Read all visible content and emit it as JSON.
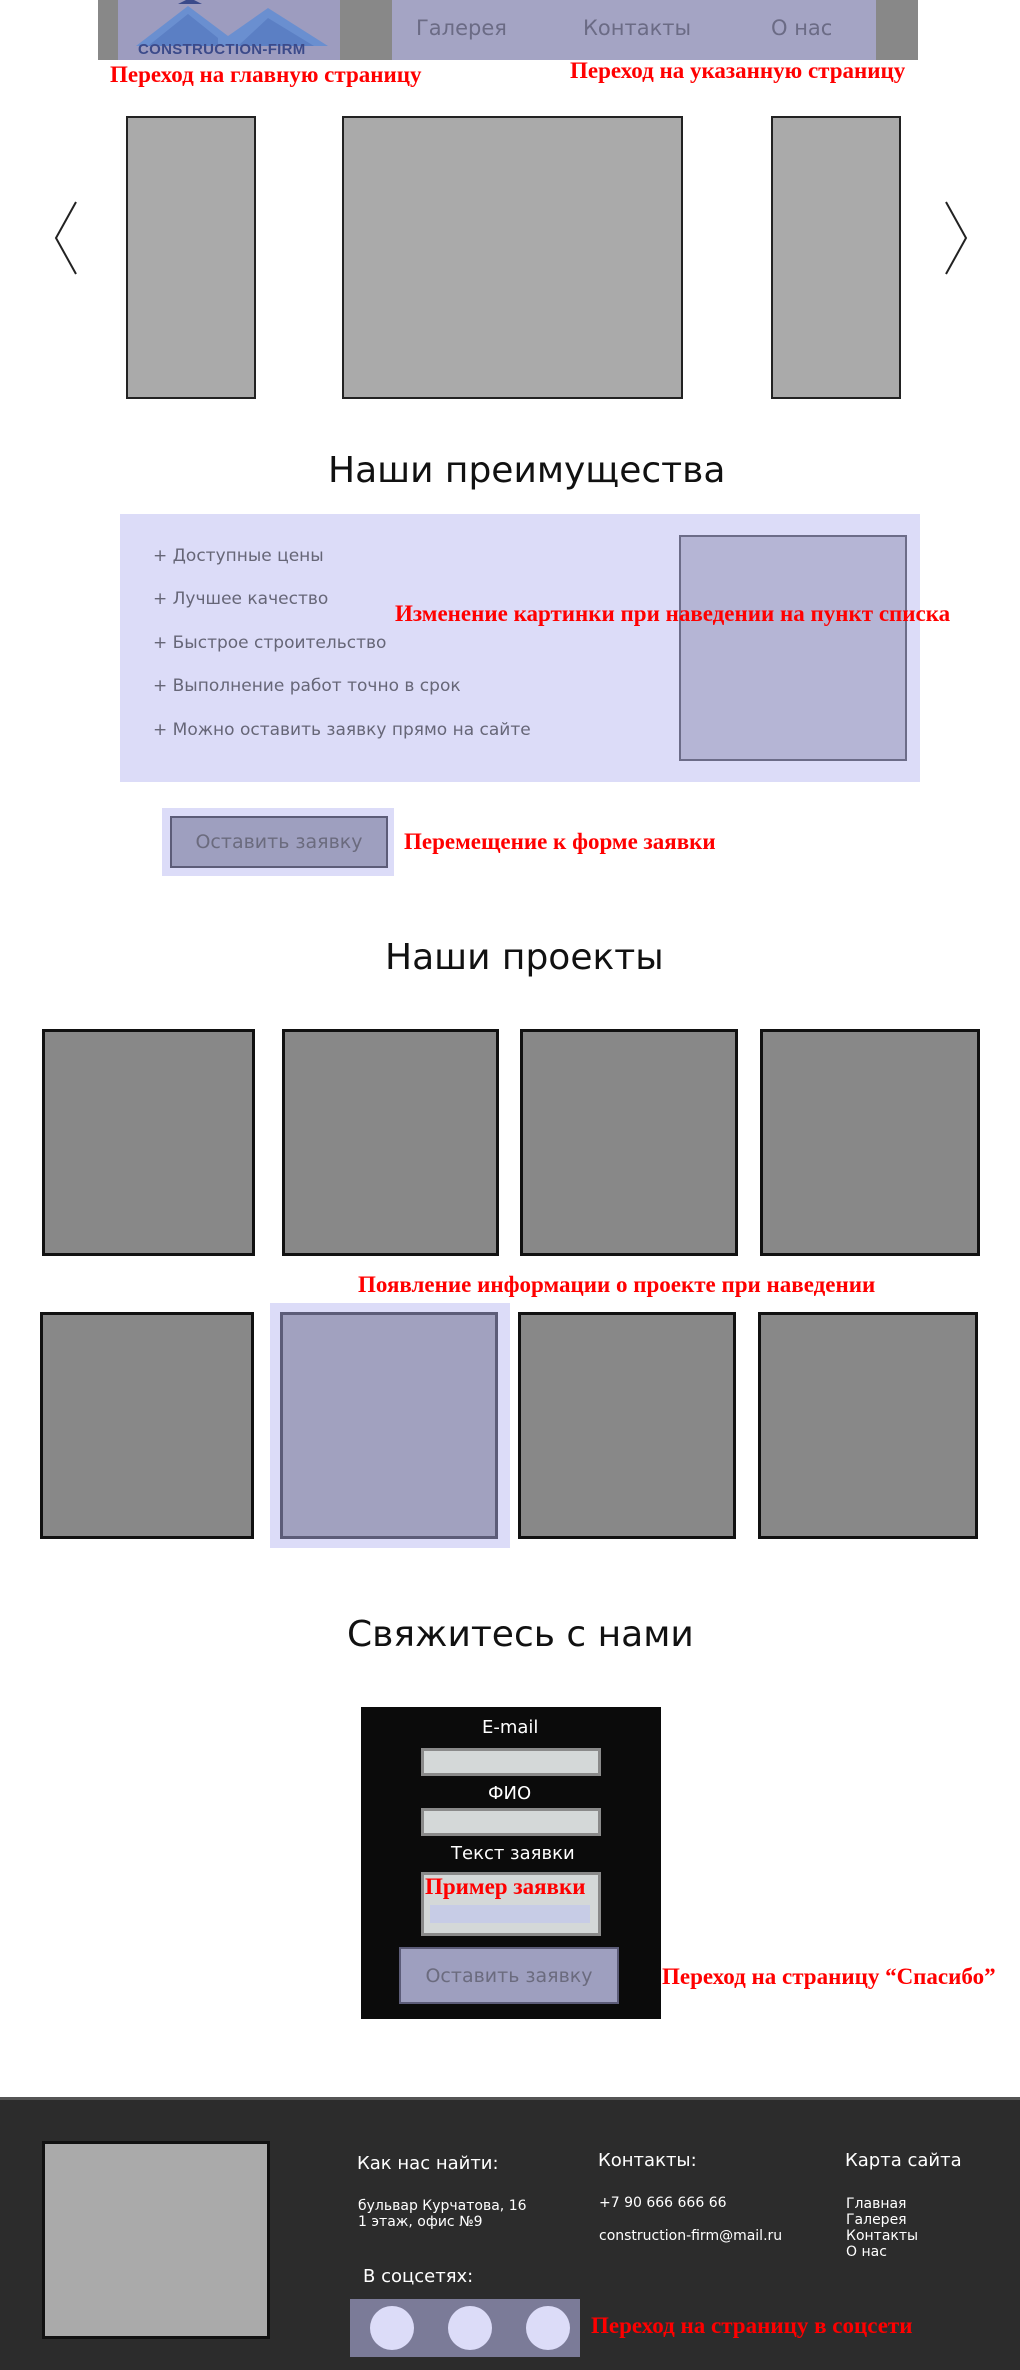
{
  "header": {
    "logo_text": "CONSTRUCTION-FIRM",
    "nav": [
      {
        "label": "Галерея"
      },
      {
        "label": "Контакты"
      },
      {
        "label": "О нас"
      }
    ]
  },
  "notes": {
    "home": "Переход на главную страницу",
    "nav": "Переход на указанную страницу",
    "hover_image": "Изменение картинки при наведении на пункт списка",
    "scroll_form": "Перемещение к форме заявки",
    "project_info": "Появление информации о проекте при наведении",
    "thanks": "Переход на страницу “Спасибо”",
    "social": "Переход на страницу в соцсети"
  },
  "advantages": {
    "title": "Наши преимущества",
    "items": [
      "+ Доступные цены",
      "+ Лучшее качество",
      "+ Быстрое строительство",
      "+ Выполнение работ точно в срок",
      "+ Можно оставить заявку прямо на сайте"
    ],
    "button": "Оставить заявку"
  },
  "projects": {
    "title": "Наши проекты"
  },
  "contact": {
    "title": "Свяжитесь с нами",
    "email_label": "E-mail",
    "name_label": "ФИО",
    "text_label": "Текст заявки",
    "example": "Пример заявки",
    "submit": "Оставить заявку"
  },
  "footer": {
    "find_title": "Как нас найти:",
    "address_line1": "бульвар Курчатова, 16",
    "address_line2": "1 этаж, офис №9",
    "contacts_title": "Контакты:",
    "phone": "+7 90 666 666 66",
    "email": "construction-firm@mail.ru",
    "sitemap_title": "Карта сайта",
    "sitemap": [
      "Главная",
      "Галерея",
      "Контакты",
      "О нас"
    ],
    "social_title": "В соцсетях:"
  },
  "colors": {
    "note": "#ff0000",
    "accent_panel": "#dcdcf8",
    "button": "#9e9fbf",
    "footer": "#2c2c2c"
  }
}
